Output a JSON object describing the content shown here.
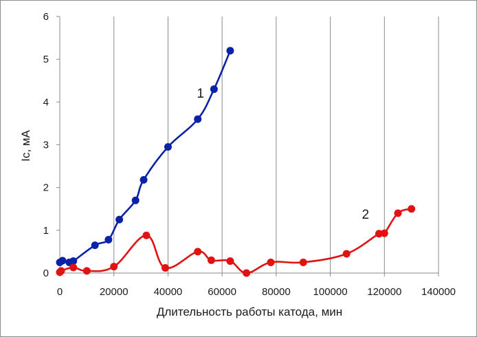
{
  "chart_data": {
    "type": "line",
    "title": "",
    "xlabel": "Длительность работы катода, мин",
    "ylabel": "Ic, мА",
    "xlim": [
      0,
      140000
    ],
    "ylim": [
      0,
      6
    ],
    "xticks": [
      "0",
      "20000",
      "40000",
      "60000",
      "80000",
      "100000",
      "120000",
      "140000"
    ],
    "yticks": [
      "0",
      "1",
      "2",
      "3",
      "4",
      "5",
      "6"
    ],
    "grid": "vertical",
    "series": [
      {
        "name": "1",
        "color": "#0A22A8",
        "points": [
          [
            0,
            0.25
          ],
          [
            1000,
            0.29
          ],
          [
            3500,
            0.25
          ],
          [
            5000,
            0.28
          ],
          [
            13000,
            0.65
          ],
          [
            18000,
            0.78
          ],
          [
            22000,
            1.25
          ],
          [
            28000,
            1.7
          ],
          [
            31000,
            2.18
          ],
          [
            40000,
            2.95
          ],
          [
            51000,
            3.6
          ],
          [
            57000,
            4.3
          ],
          [
            63000,
            5.2
          ]
        ]
      },
      {
        "name": "2",
        "color": "#E01212",
        "points": [
          [
            0,
            0.02
          ],
          [
            500,
            0.05
          ],
          [
            5000,
            0.13
          ],
          [
            10000,
            0.05
          ],
          [
            20000,
            0.15
          ],
          [
            32000,
            0.88
          ],
          [
            39000,
            0.12
          ],
          [
            51000,
            0.5
          ],
          [
            56000,
            0.3
          ],
          [
            63000,
            0.28
          ],
          [
            69000,
            0.0
          ],
          [
            78000,
            0.25
          ],
          [
            90000,
            0.25
          ],
          [
            106000,
            0.45
          ],
          [
            118000,
            0.92
          ],
          [
            120000,
            0.93
          ],
          [
            125000,
            1.4
          ],
          [
            130000,
            1.5
          ]
        ]
      }
    ]
  }
}
